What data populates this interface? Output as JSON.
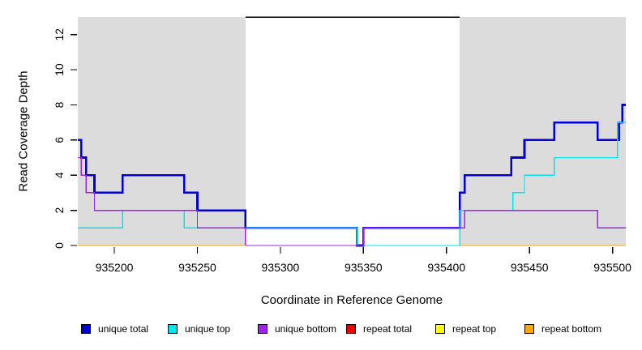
{
  "figure": {
    "background": "#FFFFFF",
    "plot_background": "#FFFFFF",
    "shaded_color": "#DCDCDC"
  },
  "chart_data": {
    "type": "line",
    "subtype": "step-coverage-plot",
    "title": "",
    "xlabel": "Coordinate in Reference Genome",
    "ylabel": "Read Coverage Depth",
    "xlim": [
      935178,
      935508
    ],
    "ylim": [
      0,
      13
    ],
    "x_ticks": [
      935200,
      935250,
      935300,
      935350,
      935400,
      935450,
      935500
    ],
    "y_ticks": [
      0,
      2,
      4,
      6,
      8,
      10,
      12
    ],
    "grid": false,
    "legend_position": "bottom",
    "shaded_regions": [
      {
        "name": "left-shaded-region",
        "x0": 935178,
        "x1": 935279,
        "color": "#DCDCDC"
      },
      {
        "name": "right-shaded-region",
        "x0": 935408,
        "x1": 935508,
        "color": "#DCDCDC"
      }
    ],
    "top_marker": {
      "name": "repeat-region-top-line",
      "x0": 935279,
      "x1": 935408,
      "y": 13,
      "color": "#000000"
    },
    "series": [
      {
        "name": "unique total",
        "color": "#0000D5",
        "width": 2.6,
        "segments": [
          [
            [
              935178,
              6
            ],
            [
              935180,
              5
            ],
            [
              935183,
              4
            ],
            [
              935188,
              3
            ],
            [
              935205,
              4
            ],
            [
              935242,
              3
            ],
            [
              935250,
              2
            ],
            [
              935279,
              1
            ],
            [
              935346,
              0
            ],
            [
              935350,
              1
            ],
            [
              935408,
              3
            ],
            [
              935411,
              4
            ],
            [
              935439,
              5
            ],
            [
              935447,
              6
            ],
            [
              935465,
              7
            ],
            [
              935491,
              6
            ],
            [
              935504,
              7
            ],
            [
              935506,
              8
            ],
            [
              935508,
              8
            ]
          ]
        ]
      },
      {
        "name": "unique top",
        "color": "#00E5EE",
        "width": 1.4,
        "segments": [
          [
            [
              935178,
              1
            ],
            [
              935205,
              2
            ],
            [
              935242,
              1
            ],
            [
              935346,
              0
            ],
            [
              935408,
              2
            ],
            [
              935440,
              3
            ],
            [
              935447,
              4
            ],
            [
              935465,
              5
            ],
            [
              935503,
              7
            ],
            [
              935508,
              7
            ]
          ]
        ]
      },
      {
        "name": "unique bottom",
        "color": "#A020F0",
        "width": 1.4,
        "segments": [
          [
            [
              935178,
              5
            ],
            [
              935180,
              4
            ],
            [
              935183,
              3
            ],
            [
              935188,
              2
            ],
            [
              935250,
              1
            ],
            [
              935279,
              0
            ],
            [
              935350,
              1
            ],
            [
              935411,
              2
            ],
            [
              935491,
              1
            ],
            [
              935508,
              1
            ]
          ]
        ]
      },
      {
        "name": "repeat total",
        "color": "#EE0000",
        "width": 1.4,
        "segments": [
          [
            [
              935178,
              0
            ],
            [
              935279,
              0
            ]
          ],
          [
            [
              935408,
              0
            ],
            [
              935508,
              0
            ]
          ]
        ]
      },
      {
        "name": "repeat top",
        "color": "#FFFF00",
        "width": 1.4,
        "segments": [
          [
            [
              935178,
              0
            ],
            [
              935279,
              0
            ]
          ],
          [
            [
              935408,
              0
            ],
            [
              935508,
              0
            ]
          ]
        ]
      },
      {
        "name": "repeat bottom",
        "color": "#FFA500",
        "width": 1.4,
        "segments": [
          [
            [
              935178,
              0
            ],
            [
              935279,
              0
            ]
          ],
          [
            [
              935408,
              0
            ],
            [
              935508,
              0
            ]
          ]
        ]
      }
    ]
  }
}
